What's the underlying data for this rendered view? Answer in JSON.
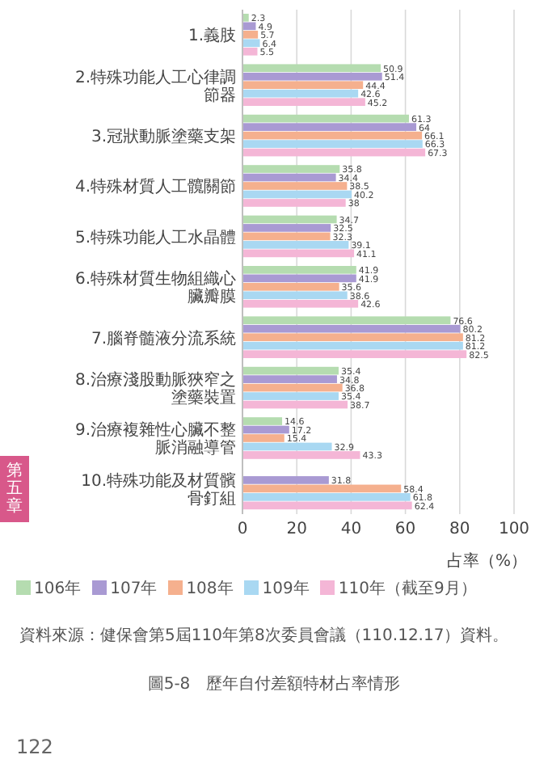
{
  "chart_data": {
    "type": "bar",
    "orientation": "horizontal",
    "title": "圖5-8　歷年自付差額特材占率情形",
    "xlabel": "占率（%）",
    "categories": [
      "1.義肢",
      "2.特殊功能人工心律調節器",
      "3.冠狀動脈塗藥支架",
      "4.特殊材質人工髖關節",
      "5.特殊功能人工水晶體",
      "6.特殊材質生物組織心臟瓣膜",
      "7.腦脊髓液分流系統",
      "8.治療淺股動脈狹窄之塗藥裝置",
      "9.治療複雜性心臟不整脈消融導管",
      "10.特殊功能及材質髕骨釘組"
    ],
    "series": [
      {
        "name": "106年",
        "color": "#b5dcb0",
        "values": [
          2.3,
          50.9,
          61.3,
          35.8,
          34.7,
          41.9,
          76.6,
          35.4,
          14.6,
          null
        ]
      },
      {
        "name": "107年",
        "color": "#a99ad3",
        "values": [
          4.9,
          51.4,
          64.0,
          34.4,
          32.5,
          41.9,
          80.2,
          34.8,
          17.2,
          31.8
        ]
      },
      {
        "name": "108年",
        "color": "#f5b08e",
        "values": [
          5.7,
          44.4,
          66.1,
          38.5,
          32.3,
          35.6,
          81.2,
          36.8,
          15.4,
          58.4
        ]
      },
      {
        "name": "109年",
        "color": "#a9d8f2",
        "values": [
          6.4,
          42.6,
          66.3,
          40.2,
          39.1,
          38.6,
          81.2,
          35.4,
          32.9,
          61.8
        ]
      },
      {
        "name": "110年（截至9月）",
        "color": "#f4b6d6",
        "values": [
          5.5,
          45.2,
          67.3,
          38.0,
          41.1,
          42.6,
          82.5,
          38.7,
          43.3,
          62.4
        ]
      }
    ],
    "xlim": [
      0,
      100
    ],
    "xticks": [
      0,
      20,
      40,
      60,
      80,
      100
    ],
    "grid": "x",
    "legend": "bottom",
    "data_labels": true,
    "annotations": [
      "資料來源：健保會第5屆110年第8次委員會議（110.12.17）資料。",
      "122",
      "第五章"
    ]
  }
}
